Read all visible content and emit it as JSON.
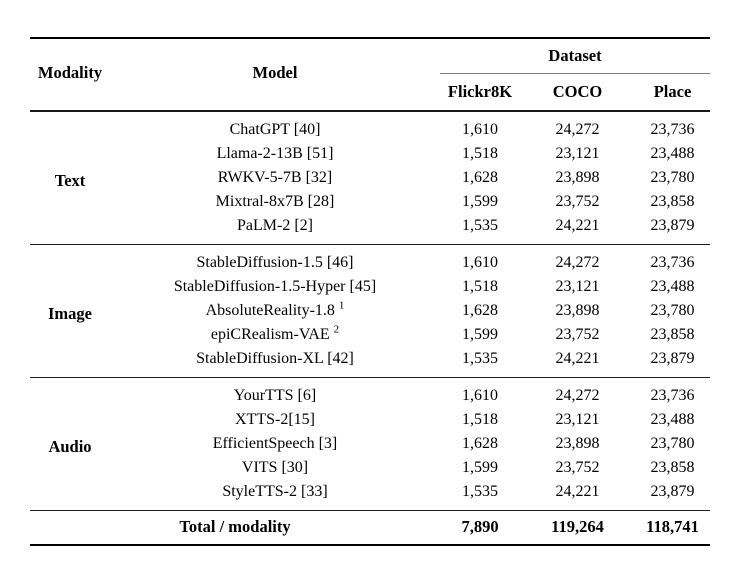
{
  "table": {
    "header": {
      "modality_label": "Modality",
      "model_label": "Model",
      "dataset_label": "Dataset",
      "dataset_columns": [
        "Flickr8K",
        "COCO",
        "Place"
      ]
    },
    "column_keys": [
      "flickr8k",
      "coco",
      "place"
    ],
    "sections": [
      {
        "modality": "Text",
        "rows": [
          {
            "model": "ChatGPT [40]",
            "sup": "",
            "values": [
              "1,610",
              "24,272",
              "23,736"
            ]
          },
          {
            "model": "Llama-2-13B [51]",
            "sup": "",
            "values": [
              "1,518",
              "23,121",
              "23,488"
            ]
          },
          {
            "model": "RWKV-5-7B [32]",
            "sup": "",
            "values": [
              "1,628",
              "23,898",
              "23,780"
            ]
          },
          {
            "model": "Mixtral-8x7B [28]",
            "sup": "",
            "values": [
              "1,599",
              "23,752",
              "23,858"
            ]
          },
          {
            "model": "PaLM-2 [2]",
            "sup": "",
            "values": [
              "1,535",
              "24,221",
              "23,879"
            ]
          }
        ]
      },
      {
        "modality": "Image",
        "rows": [
          {
            "model": "StableDiffusion-1.5 [46]",
            "sup": "",
            "values": [
              "1,610",
              "24,272",
              "23,736"
            ]
          },
          {
            "model": "StableDiffusion-1.5-Hyper [45]",
            "sup": "",
            "values": [
              "1,518",
              "23,121",
              "23,488"
            ]
          },
          {
            "model": "AbsoluteReality-1.8",
            "sup": "1",
            "values": [
              "1,628",
              "23,898",
              "23,780"
            ]
          },
          {
            "model": "epiCRealism-VAE",
            "sup": "2",
            "values": [
              "1,599",
              "23,752",
              "23,858"
            ]
          },
          {
            "model": "StableDiffusion-XL [42]",
            "sup": "",
            "values": [
              "1,535",
              "24,221",
              "23,879"
            ]
          }
        ]
      },
      {
        "modality": "Audio",
        "rows": [
          {
            "model": "YourTTS [6]",
            "sup": "",
            "values": [
              "1,610",
              "24,272",
              "23,736"
            ]
          },
          {
            "model": "XTTS-2[15]",
            "sup": "",
            "values": [
              "1,518",
              "23,121",
              "23,488"
            ]
          },
          {
            "model": "EfficientSpeech [3]",
            "sup": "",
            "values": [
              "1,628",
              "23,898",
              "23,780"
            ]
          },
          {
            "model": "VITS [30]",
            "sup": "",
            "values": [
              "1,599",
              "23,752",
              "23,858"
            ]
          },
          {
            "model": "StyleTTS-2 [33]",
            "sup": "",
            "values": [
              "1,535",
              "24,221",
              "23,879"
            ]
          }
        ]
      }
    ],
    "total": {
      "label": "Total / modality",
      "values": [
        "7,890",
        "119,264",
        "118,741"
      ]
    }
  }
}
